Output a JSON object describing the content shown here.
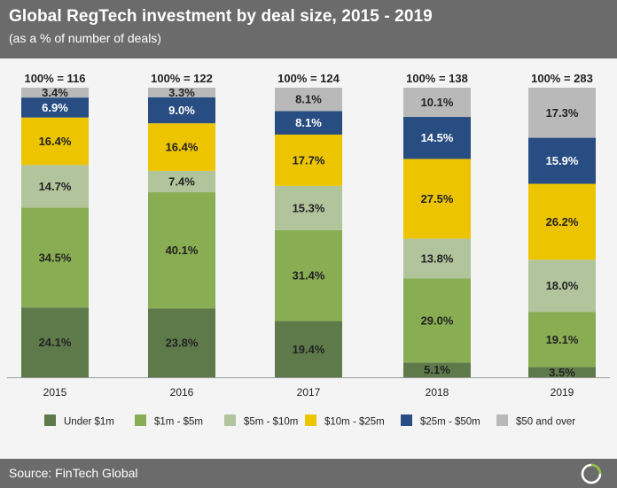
{
  "header": {
    "title": "Global RegTech investment by deal size, 2015 - 2019",
    "subtitle": "(as a % of number of deals)"
  },
  "footer": {
    "source": "Source: FinTech Global"
  },
  "chart_data": {
    "type": "bar",
    "stacked": true,
    "title": "Global RegTech investment by deal size, 2015 - 2019",
    "subtitle": "(as a % of number of deals)",
    "xlabel": "",
    "ylabel": "",
    "ylim": [
      0,
      100
    ],
    "categories": [
      "2015",
      "2016",
      "2017",
      "2018",
      "2019"
    ],
    "totals": [
      "100% = 116",
      "100% = 122",
      "100% = 124",
      "100% = 138",
      "100% = 283"
    ],
    "series": [
      {
        "name": "Under $1m",
        "color": "#5f7a4a",
        "values": [
          24.1,
          23.8,
          19.4,
          5.1,
          3.5
        ]
      },
      {
        "name": "$1m - $5m",
        "color": "#89ad52",
        "values": [
          34.5,
          40.1,
          31.4,
          29.0,
          19.1
        ]
      },
      {
        "name": "$5m - $10m",
        "color": "#b2c49c",
        "values": [
          14.7,
          7.4,
          15.3,
          13.8,
          18.0
        ]
      },
      {
        "name": "$10m - $25m",
        "color": "#edc400",
        "values": [
          16.4,
          16.4,
          17.7,
          27.5,
          26.2
        ]
      },
      {
        "name": "$25m - $50m",
        "color": "#284d82",
        "values": [
          6.9,
          9.0,
          8.1,
          14.5,
          15.9
        ]
      },
      {
        "name": "$50 and over",
        "color": "#b9b9b9",
        "values": [
          3.4,
          3.3,
          8.1,
          10.1,
          17.3
        ]
      }
    ],
    "legend_position": "bottom",
    "grid": false
  },
  "logo": {
    "name": "fintech-global-logo"
  }
}
